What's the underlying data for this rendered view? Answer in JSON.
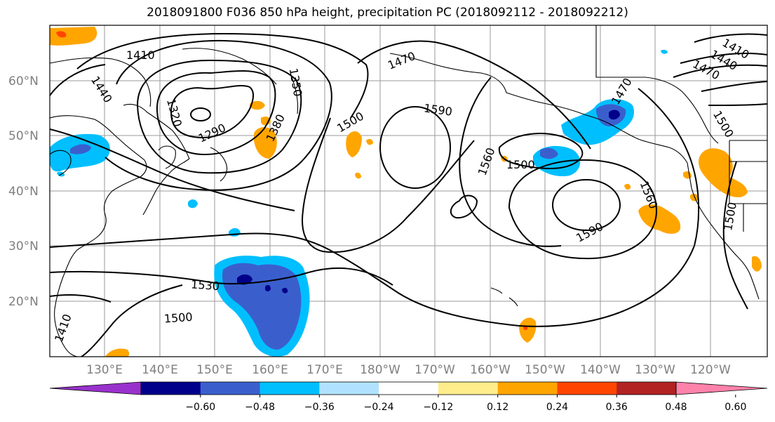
{
  "title": "2018091800 F036 850 hPa height, precipitation PC (2018092112 - 2018092212)",
  "lat_labels": [
    "60°N",
    "50°N",
    "40°N",
    "30°N",
    "20°N"
  ],
  "lon_labels": [
    "130°E",
    "140°E",
    "150°E",
    "160°E",
    "170°E",
    "180°W",
    "170°W",
    "160°W",
    "150°W",
    "140°W",
    "130°W",
    "120°W"
  ],
  "contour_labels": [
    "1410",
    "1440",
    "1320",
    "1350",
    "1290",
    "1380",
    "1470",
    "1500",
    "1590",
    "1560",
    "1500",
    "1560",
    "1590",
    "1470",
    "1500",
    "1440",
    "1410",
    "1470",
    "1500",
    "1530",
    "1500",
    "1410"
  ],
  "colorbar": {
    "colors": [
      "#9932cc",
      "#00008b",
      "#3a5fcd",
      "#00bfff",
      "#b0e2ff",
      "#ffffff",
      "#ffec8b",
      "#ffa500",
      "#ff4500",
      "#b22222",
      "#ff82ab"
    ],
    "tick_labels": [
      "−0.60",
      "−0.48",
      "−0.36",
      "−0.24",
      "−0.12",
      "0.12",
      "0.24",
      "0.36",
      "0.48",
      "0.60"
    ]
  }
}
